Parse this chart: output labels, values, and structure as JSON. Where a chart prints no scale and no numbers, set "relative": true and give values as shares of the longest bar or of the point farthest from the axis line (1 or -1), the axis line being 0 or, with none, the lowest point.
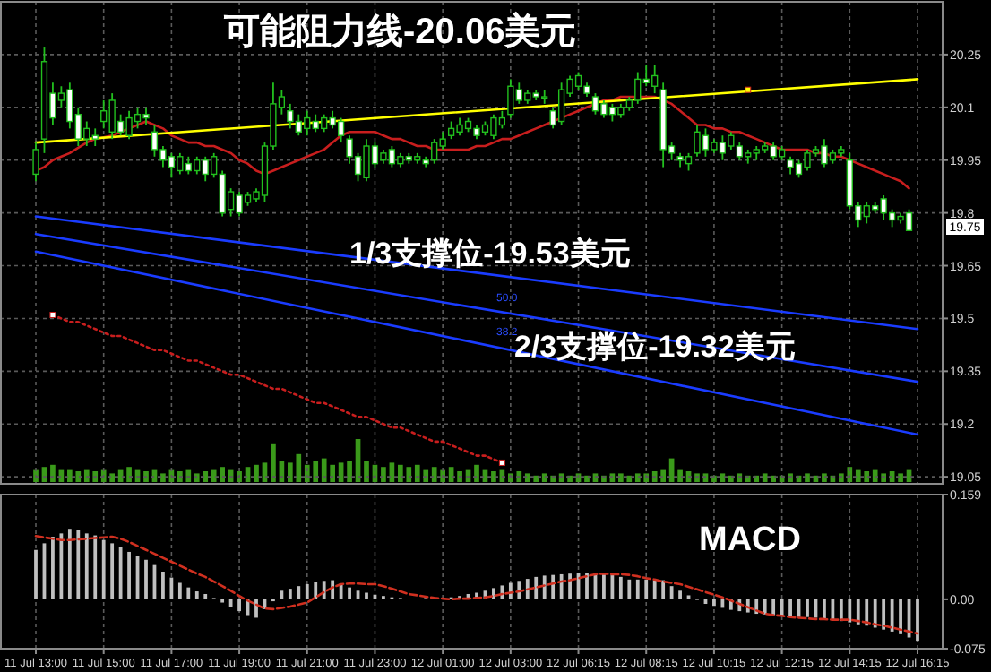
{
  "chart_data": [
    {
      "type": "candlestick",
      "categories": [
        "11 Jul 13:00",
        null,
        null,
        null,
        null,
        null,
        null,
        null,
        "11 Jul 15:00",
        null,
        null,
        null,
        null,
        null,
        null,
        null,
        "11 Jul 17:00",
        null,
        null,
        null,
        null,
        null,
        null,
        null,
        "11 Jul 19:00",
        null,
        null,
        null,
        null,
        null,
        null,
        null,
        "11 Jul 21:00",
        null,
        null,
        null,
        null,
        null,
        null,
        null,
        "11 Jul 23:00",
        null,
        null,
        null,
        null,
        null,
        null,
        null,
        "12 Jul 01:00",
        null,
        null,
        null,
        null,
        null,
        null,
        null,
        "12 Jul 03:00",
        null,
        null,
        null,
        null,
        null,
        null,
        null,
        "12 Jul 06:15",
        null,
        null,
        null,
        null,
        null,
        null,
        null,
        "12 Jul 08:15",
        null,
        null,
        null,
        null,
        null,
        null,
        null,
        "12 Jul 10:15",
        null,
        null,
        null,
        null,
        null,
        null,
        null,
        "12 Jul 12:15",
        null,
        null,
        null,
        null,
        null,
        null,
        null,
        "12 Jul 14:15",
        null,
        null,
        null,
        null,
        null,
        null,
        null,
        "12 Jul 16:15"
      ],
      "ohlc": [
        [
          19.91,
          20.0,
          19.89,
          19.98
        ],
        [
          20.01,
          20.27,
          19.97,
          20.23
        ],
        [
          20.14,
          20.17,
          20.05,
          20.07
        ],
        [
          20.12,
          20.16,
          20.1,
          20.14
        ],
        [
          20.15,
          20.17,
          20.04,
          20.06
        ],
        [
          20.08,
          20.1,
          19.99,
          20.01
        ],
        [
          20.01,
          20.06,
          19.99,
          20.04
        ],
        [
          20.02,
          20.04,
          19.99,
          20.01
        ],
        [
          20.06,
          20.12,
          20.04,
          20.09
        ],
        [
          20.03,
          20.14,
          20.01,
          20.12
        ],
        [
          20.06,
          20.08,
          20.02,
          20.03
        ],
        [
          20.02,
          20.09,
          20.01,
          20.07
        ],
        [
          20.06,
          20.1,
          20.04,
          20.08
        ],
        [
          20.08,
          20.1,
          20.05,
          20.07
        ],
        [
          20.03,
          20.05,
          19.96,
          19.98
        ],
        [
          19.98,
          19.99,
          19.93,
          19.95
        ],
        [
          19.96,
          19.97,
          19.9,
          19.93
        ],
        [
          19.92,
          19.97,
          19.91,
          19.96
        ],
        [
          19.94,
          19.96,
          19.91,
          19.92
        ],
        [
          19.92,
          19.96,
          19.91,
          19.95
        ],
        [
          19.95,
          19.96,
          19.89,
          19.91
        ],
        [
          19.91,
          19.97,
          19.9,
          19.96
        ],
        [
          19.91,
          19.92,
          19.79,
          19.8
        ],
        [
          19.81,
          19.87,
          19.79,
          19.86
        ],
        [
          19.85,
          19.86,
          19.79,
          19.8
        ],
        [
          19.83,
          19.86,
          19.82,
          19.85
        ],
        [
          19.84,
          19.87,
          19.83,
          19.86
        ],
        [
          19.85,
          20.0,
          19.83,
          19.99
        ],
        [
          19.99,
          20.17,
          19.98,
          20.11
        ],
        [
          20.1,
          20.15,
          20.08,
          20.13
        ],
        [
          20.09,
          20.11,
          20.04,
          20.06
        ],
        [
          20.06,
          20.08,
          20.02,
          20.03
        ],
        [
          20.04,
          20.09,
          20.02,
          20.07
        ],
        [
          20.06,
          20.08,
          20.03,
          20.04
        ],
        [
          20.04,
          20.08,
          20.03,
          20.07
        ],
        [
          20.07,
          20.09,
          20.04,
          20.05
        ],
        [
          20.06,
          20.07,
          20.0,
          20.02
        ],
        [
          20.01,
          20.02,
          19.94,
          19.96
        ],
        [
          19.96,
          19.97,
          19.89,
          19.91
        ],
        [
          19.9,
          20.01,
          19.89,
          19.99
        ],
        [
          19.99,
          20.0,
          19.93,
          19.94
        ],
        [
          19.95,
          19.98,
          19.94,
          19.97
        ],
        [
          19.98,
          19.99,
          19.93,
          19.94
        ],
        [
          19.94,
          19.97,
          19.93,
          19.96
        ],
        [
          19.96,
          19.97,
          19.94,
          19.95
        ],
        [
          19.95,
          19.97,
          19.94,
          19.96
        ],
        [
          19.95,
          19.96,
          19.93,
          19.94
        ],
        [
          19.95,
          20.01,
          19.94,
          20.0
        ],
        [
          19.99,
          20.03,
          19.98,
          20.01
        ],
        [
          20.02,
          20.06,
          20.01,
          20.04
        ],
        [
          20.03,
          20.07,
          20.02,
          20.05
        ],
        [
          20.04,
          20.07,
          20.03,
          20.06
        ],
        [
          20.04,
          20.05,
          20.01,
          20.02
        ],
        [
          20.03,
          20.06,
          20.02,
          20.05
        ],
        [
          20.02,
          20.08,
          20.01,
          20.07
        ],
        [
          20.05,
          20.09,
          20.04,
          20.07
        ],
        [
          20.08,
          20.18,
          20.07,
          20.16
        ],
        [
          20.15,
          20.17,
          20.11,
          20.12
        ],
        [
          20.12,
          20.15,
          20.11,
          20.14
        ],
        [
          20.14,
          20.15,
          20.12,
          20.13
        ],
        [
          20.13,
          20.15,
          20.11,
          20.13
        ],
        [
          20.09,
          20.1,
          20.04,
          20.05
        ],
        [
          20.06,
          20.17,
          20.05,
          20.15
        ],
        [
          20.14,
          20.19,
          20.13,
          20.18
        ],
        [
          20.16,
          20.2,
          20.15,
          20.19
        ],
        [
          20.16,
          20.17,
          20.13,
          20.14
        ],
        [
          20.13,
          20.14,
          20.08,
          20.09
        ],
        [
          20.11,
          20.12,
          20.07,
          20.08
        ],
        [
          20.1,
          20.11,
          20.06,
          20.08
        ],
        [
          20.08,
          20.11,
          20.07,
          20.1
        ],
        [
          20.1,
          20.13,
          20.09,
          20.12
        ],
        [
          20.12,
          20.2,
          20.11,
          20.18
        ],
        [
          20.18,
          20.22,
          20.16,
          20.17
        ],
        [
          20.16,
          20.22,
          20.14,
          20.19
        ],
        [
          20.15,
          20.17,
          19.93,
          19.98
        ],
        [
          19.99,
          20.0,
          19.95,
          19.97
        ],
        [
          19.96,
          19.97,
          19.93,
          19.95
        ],
        [
          19.94,
          19.97,
          19.92,
          19.96
        ],
        [
          19.97,
          20.05,
          19.96,
          20.03
        ],
        [
          20.02,
          20.04,
          19.96,
          19.98
        ],
        [
          19.98,
          20.01,
          19.97,
          20.0
        ],
        [
          20.0,
          20.02,
          19.95,
          19.97
        ],
        [
          19.99,
          20.03,
          19.98,
          20.02
        ],
        [
          19.99,
          20.0,
          19.95,
          19.96
        ],
        [
          19.96,
          19.98,
          19.94,
          19.97
        ],
        [
          19.97,
          19.99,
          19.95,
          19.98
        ],
        [
          19.98,
          20.0,
          19.97,
          19.99
        ],
        [
          19.99,
          20.0,
          19.95,
          19.96
        ],
        [
          19.96,
          19.99,
          19.95,
          19.98
        ],
        [
          19.95,
          19.96,
          19.91,
          19.93
        ],
        [
          19.94,
          19.95,
          19.9,
          19.91
        ],
        [
          19.93,
          19.98,
          19.92,
          19.97
        ],
        [
          19.97,
          19.99,
          19.96,
          19.98
        ],
        [
          19.99,
          20.01,
          19.93,
          19.94
        ],
        [
          19.95,
          19.98,
          19.94,
          19.97
        ],
        [
          19.97,
          19.99,
          19.96,
          19.98
        ],
        [
          19.95,
          19.97,
          19.81,
          19.82
        ],
        [
          19.82,
          19.83,
          19.76,
          19.78
        ],
        [
          19.79,
          19.83,
          19.77,
          19.82
        ],
        [
          19.82,
          19.83,
          19.8,
          19.81
        ],
        [
          19.84,
          19.85,
          19.78,
          19.8
        ],
        [
          19.8,
          19.81,
          19.76,
          19.78
        ],
        [
          19.78,
          19.8,
          19.77,
          19.79
        ],
        [
          19.8,
          19.81,
          19.75,
          19.75
        ],
        null
      ],
      "ylim": [
        19.03,
        20.4
      ],
      "yticks": [
        19.05,
        19.2,
        19.35,
        19.5,
        19.65,
        19.8,
        19.95,
        20.1,
        20.25
      ],
      "grid": true,
      "tick_labels": "y",
      "series": [
        {
          "type": "line",
          "color": "#c81e1e",
          "values": [
            19.92,
            19.93,
            19.95,
            19.96,
            19.97,
            19.985,
            20.0,
            20.01,
            20.015,
            20.02,
            20.03,
            20.04,
            20.05,
            20.06,
            20.05,
            20.04,
            20.02,
            20.01,
            20.0,
            20.0,
            19.99,
            19.99,
            19.98,
            19.97,
            19.95,
            19.94,
            19.92,
            19.91,
            19.92,
            19.93,
            19.94,
            19.95,
            19.96,
            19.97,
            19.98,
            20.0,
            20.02,
            20.03,
            20.03,
            20.03,
            20.03,
            20.02,
            20.01,
            20.01,
            20.0,
            19.99,
            19.99,
            19.98,
            19.98,
            19.98,
            19.98,
            19.98,
            19.99,
            19.99,
            20.0,
            20.01,
            20.01,
            20.02,
            20.03,
            20.04,
            20.05,
            20.06,
            20.07,
            20.08,
            20.09,
            20.1,
            20.11,
            20.12,
            20.12,
            20.13,
            20.13,
            20.13,
            20.13,
            20.13,
            20.12,
            20.11,
            20.09,
            20.07,
            20.05,
            20.05,
            20.04,
            20.04,
            20.03,
            20.03,
            20.02,
            20.01,
            20.0,
            19.99,
            19.98,
            19.98,
            19.98,
            19.98,
            19.97,
            19.97,
            19.96,
            19.96,
            19.95,
            19.94,
            19.93,
            19.92,
            19.91,
            19.9,
            19.89,
            19.87,
            null
          ]
        },
        {
          "type": "line",
          "color": "#ffff00",
          "x": [
            "11 Jul 13:00",
            "12 Jul 16:15"
          ],
          "values": [
            20.0,
            20.18
          ]
        },
        {
          "type": "line",
          "color": "#1a3cff",
          "x": [
            "11 Jul 13:00",
            "12 Jul 16:15"
          ],
          "values": [
            19.79,
            19.47
          ]
        },
        {
          "type": "line",
          "color": "#1a3cff",
          "x": [
            "11 Jul 13:00",
            "12 Jul 16:15"
          ],
          "values": [
            19.74,
            19.32
          ]
        },
        {
          "type": "line",
          "color": "#1a3cff",
          "x": [
            "11 Jul 13:00",
            "12 Jul 16:15"
          ],
          "values": [
            19.69,
            19.17
          ]
        },
        {
          "type": "line",
          "color": "#c81e1e",
          "line_style": "dotted",
          "values": [
            null,
            null,
            19.51,
            19.5,
            19.49,
            19.49,
            19.48,
            19.47,
            19.46,
            19.45,
            19.45,
            19.44,
            19.43,
            19.42,
            19.41,
            19.41,
            19.4,
            19.39,
            19.38,
            19.38,
            19.37,
            19.36,
            19.35,
            19.34,
            19.34,
            19.33,
            19.32,
            19.31,
            19.3,
            19.3,
            19.29,
            19.28,
            19.27,
            19.26,
            19.26,
            19.25,
            19.24,
            19.23,
            19.22,
            19.22,
            19.21,
            19.2,
            19.19,
            19.19,
            19.18,
            19.17,
            19.16,
            19.15,
            19.15,
            19.14,
            19.13,
            19.12,
            19.11,
            19.11,
            19.1,
            19.09,
            null,
            null,
            null,
            null,
            null,
            null,
            null,
            null,
            null,
            null,
            null,
            null,
            null,
            null,
            null,
            null,
            null,
            null,
            null,
            null,
            null,
            null,
            null,
            null,
            null,
            null,
            null,
            null,
            null,
            null,
            null,
            null,
            null,
            null,
            null,
            null,
            null,
            null,
            null,
            null,
            null,
            null,
            null,
            null,
            null,
            null,
            null,
            null,
            null
          ]
        },
        {
          "type": "scatter",
          "marker": "square",
          "colors": [
            null,
            null,
            "#ffffff",
            null,
            null,
            null,
            null,
            null,
            null,
            null,
            null,
            null,
            null,
            null,
            null,
            null,
            null,
            null,
            null,
            null,
            null,
            null,
            null,
            null,
            null,
            null,
            null,
            null,
            null,
            null,
            null,
            null,
            null,
            null,
            null,
            null,
            null,
            null,
            null,
            null,
            null,
            null,
            null,
            null,
            null,
            null,
            null,
            null,
            null,
            null,
            null,
            null,
            null,
            null,
            null,
            "#ffffff",
            null,
            null,
            null,
            null,
            null,
            null,
            null,
            null,
            null,
            null,
            null,
            null,
            null,
            null,
            null,
            null,
            null,
            null,
            null,
            null,
            null,
            null,
            null,
            null,
            null,
            null,
            null,
            null,
            "#ffff00",
            null,
            null,
            null,
            null,
            null,
            null,
            null,
            null,
            null,
            null,
            null,
            null,
            null,
            null,
            null,
            null,
            null,
            null,
            null,
            null
          ],
          "values": [
            null,
            null,
            19.51,
            null,
            null,
            null,
            null,
            null,
            null,
            null,
            null,
            null,
            null,
            null,
            null,
            null,
            null,
            null,
            null,
            null,
            null,
            null,
            null,
            null,
            null,
            null,
            null,
            null,
            null,
            null,
            null,
            null,
            null,
            null,
            null,
            null,
            null,
            null,
            null,
            null,
            null,
            null,
            null,
            null,
            null,
            null,
            null,
            null,
            null,
            null,
            null,
            null,
            null,
            null,
            null,
            19.09,
            null,
            null,
            null,
            null,
            null,
            null,
            null,
            null,
            null,
            null,
            null,
            null,
            null,
            null,
            null,
            null,
            null,
            null,
            null,
            null,
            null,
            null,
            null,
            null,
            null,
            null,
            null,
            null,
            20.15,
            null,
            null,
            null,
            null,
            null,
            null,
            null,
            null,
            null,
            null,
            null,
            null,
            null,
            null,
            null,
            null,
            null,
            null,
            null,
            null
          ]
        }
      ],
      "annotations": [
        "可能阻力线-20.06美元",
        "1/3支撑位-19.53美元",
        "2/3支撑位-19.32美元",
        "50.0",
        "38.2",
        "19.75"
      ]
    },
    {
      "type": "bar",
      "title": "MACD",
      "categories": [
        "11 Jul 13:00",
        null,
        null,
        null,
        null,
        null,
        null,
        null,
        "11 Jul 15:00",
        null,
        null,
        null,
        null,
        null,
        null,
        null,
        "11 Jul 17:00",
        null,
        null,
        null,
        null,
        null,
        null,
        null,
        "11 Jul 19:00",
        null,
        null,
        null,
        null,
        null,
        null,
        null,
        "11 Jul 21:00",
        null,
        null,
        null,
        null,
        null,
        null,
        null,
        "11 Jul 23:00",
        null,
        null,
        null,
        null,
        null,
        null,
        null,
        "12 Jul 01:00",
        null,
        null,
        null,
        null,
        null,
        null,
        null,
        "12 Jul 03:00",
        null,
        null,
        null,
        null,
        null,
        null,
        null,
        "12 Jul 06:15",
        null,
        null,
        null,
        null,
        null,
        null,
        null,
        "12 Jul 08:15",
        null,
        null,
        null,
        null,
        null,
        null,
        null,
        "12 Jul 10:15",
        null,
        null,
        null,
        null,
        null,
        null,
        null,
        "12 Jul 12:15",
        null,
        null,
        null,
        null,
        null,
        null,
        null,
        "12 Jul 14:15",
        null,
        null,
        null,
        null,
        null,
        null,
        null,
        "12 Jul 16:15"
      ],
      "ylim": [
        -0.075,
        0.159
      ],
      "yticks": [
        -0.075,
        {
          "value": 0,
          "label": "0.00"
        },
        0.159
      ],
      "grid": "x",
      "series": [
        {
          "type": "bar",
          "color": "#c0c0c0",
          "values": [
            0.075,
            0.085,
            0.095,
            0.1,
            0.107,
            0.105,
            0.1,
            0.097,
            0.09,
            0.085,
            0.08,
            0.072,
            0.066,
            0.06,
            0.052,
            0.042,
            0.033,
            0.025,
            0.018,
            0.012,
            0.008,
            0.002,
            -0.005,
            -0.012,
            -0.018,
            -0.024,
            -0.028,
            -0.015,
            -0.003,
            0.013,
            0.016,
            0.02,
            0.023,
            0.026,
            0.028,
            0.029,
            0.024,
            0.018,
            0.013,
            0.01,
            0.007,
            0.005,
            0.003,
            0.002,
            null,
            null,
            0.002,
            null,
            null,
            0.003,
            0.005,
            0.008,
            0.01,
            0.013,
            0.017,
            0.021,
            0.025,
            0.028,
            0.031,
            0.034,
            0.036,
            0.037,
            0.038,
            0.039,
            0.04,
            0.04,
            0.04,
            0.04,
            0.037,
            0.034,
            0.03,
            0.03,
            0.03,
            0.029,
            0.029,
            0.02,
            0.013,
            0.006,
            -0.001,
            -0.007,
            -0.01,
            -0.013,
            -0.016,
            -0.018,
            -0.02,
            -0.022,
            -0.023,
            -0.024,
            -0.025,
            -0.026,
            -0.027,
            -0.027,
            -0.028,
            -0.03,
            -0.031,
            -0.033,
            -0.035,
            -0.038,
            -0.04,
            -0.043,
            -0.046,
            -0.049,
            -0.053,
            -0.058,
            -0.063
          ]
        },
        {
          "type": "line",
          "color": "#d03020",
          "line_style": "dashed",
          "values": [
            0.096,
            0.094,
            0.092,
            0.09,
            0.09,
            0.091,
            0.092,
            0.093,
            0.094,
            0.095,
            0.092,
            0.087,
            0.081,
            0.075,
            0.069,
            0.063,
            0.057,
            0.051,
            0.045,
            0.039,
            0.034,
            0.027,
            0.02,
            0.013,
            0.005,
            -0.002,
            -0.008,
            -0.014,
            -0.015,
            -0.013,
            -0.011,
            -0.008,
            -0.005,
            0.003,
            0.011,
            0.018,
            0.023,
            0.024,
            0.024,
            0.023,
            0.023,
            0.02,
            0.016,
            0.012,
            0.008,
            0.006,
            0.004,
            0.002,
            0.001,
            0.0,
            0.001,
            0.001,
            0.002,
            0.003,
            0.005,
            0.008,
            0.01,
            0.012,
            0.015,
            0.018,
            0.021,
            0.024,
            0.027,
            0.029,
            0.032,
            0.035,
            0.038,
            0.039,
            0.038,
            0.038,
            0.037,
            0.035,
            0.032,
            0.03,
            0.027,
            0.025,
            0.023,
            0.019,
            0.015,
            0.011,
            0.007,
            0.003,
            -0.002,
            -0.007,
            -0.012,
            -0.017,
            -0.022,
            -0.024,
            -0.025,
            -0.027,
            -0.028,
            -0.029,
            -0.03,
            -0.03,
            -0.031,
            -0.031,
            -0.031,
            -0.033,
            -0.035,
            -0.038,
            -0.04,
            -0.043,
            -0.046,
            -0.049,
            -0.052
          ]
        }
      ]
    },
    {
      "type": "bar",
      "relative": true,
      "color": "#3a9a1a",
      "tick_labels": false,
      "categories": [
        null,
        null,
        null,
        null,
        null,
        null,
        null,
        null,
        null,
        null,
        null,
        null,
        null,
        null,
        null,
        null,
        null,
        null,
        null,
        null,
        null,
        null,
        null,
        null,
        null,
        null,
        null,
        null,
        null,
        null,
        null,
        null,
        null,
        null,
        null,
        null,
        null,
        null,
        null,
        null,
        null,
        null,
        null,
        null,
        null,
        null,
        null,
        null,
        null,
        null,
        null,
        null,
        null,
        null,
        null,
        null,
        null,
        null,
        null,
        null,
        null,
        null,
        null,
        null,
        null,
        null,
        null,
        null,
        null,
        null,
        null,
        null,
        null,
        null,
        null,
        null,
        null,
        null,
        null,
        null,
        null,
        null,
        null,
        null,
        null,
        null,
        null,
        null,
        null,
        null,
        null,
        null,
        null,
        null,
        null,
        null,
        null,
        null,
        null,
        null,
        null,
        null,
        null,
        null,
        null
      ],
      "values": [
        0.3,
        0.35,
        0.4,
        0.3,
        0.3,
        0.25,
        0.3,
        0.25,
        0.3,
        0.2,
        0.3,
        0.35,
        0.3,
        0.25,
        0.3,
        0.2,
        0.3,
        0.25,
        0.3,
        0.2,
        0.25,
        0.3,
        0.35,
        0.3,
        0.25,
        0.35,
        0.4,
        0.45,
        0.9,
        0.5,
        0.45,
        0.65,
        0.4,
        0.5,
        0.55,
        0.4,
        0.45,
        0.5,
        1,
        0.5,
        0.4,
        0.35,
        0.45,
        0.4,
        0.35,
        0.4,
        0.3,
        0.35,
        0.3,
        0.35,
        0.25,
        0.3,
        0.4,
        0.3,
        0.25,
        0.3,
        0.2,
        0.25,
        0.2,
        0.15,
        0.2,
        0.15,
        0.2,
        0.15,
        0.2,
        0.15,
        0.2,
        0.15,
        0.2,
        0.2,
        0.15,
        0.2,
        0.2,
        0.25,
        0.3,
        0.55,
        0.3,
        0.25,
        0.2,
        0.2,
        0.15,
        0.2,
        0.15,
        0.2,
        0.15,
        0.15,
        0.2,
        0.15,
        0.15,
        0.2,
        0.15,
        0.2,
        0.15,
        0.2,
        0.15,
        0.2,
        0.35,
        0.3,
        0.25,
        0.3,
        0.2,
        0.25,
        0.2,
        0.3,
        null
      ]
    }
  ]
}
